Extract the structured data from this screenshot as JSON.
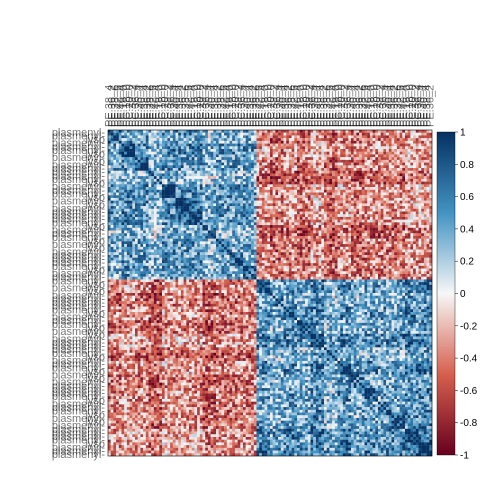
{
  "chart_data": {
    "type": "heatmap",
    "title": "",
    "xlabel": "",
    "ylabel": "",
    "value_range": [
      -1,
      1
    ],
    "colorbar": {
      "ticks": [
        1,
        0.8,
        0.6,
        0.4,
        0.2,
        0,
        -0.2,
        -0.4,
        -0.6,
        -0.8,
        -1
      ],
      "tick_labels": [
        "1",
        "0.8",
        "0.6",
        "0.4",
        "0.2",
        "0",
        "-0.2",
        "-0.4",
        "-0.6",
        "-0.8",
        "-1"
      ],
      "colors": {
        "high": "#053061",
        "mid_high": "#4393c3",
        "zero": "#f7f7f7",
        "mid_low": "#d6604d",
        "low": "#67001f"
      }
    },
    "legible_column_labels": [
      "PE.38_4",
      "PE.36_2",
      "PE.38_6",
      "PE.42_6",
      "PE.40_4",
      "PE.18_0",
      "PC.18_0",
      "PC.20_0",
      "PE.38_2",
      "PC.36_4",
      "PE.36_4",
      "PE.40_4"
    ],
    "legible_row_labels": [
      "plasmenyl-",
      "plasmenyl-",
      "lyso",
      "plasmenyl-",
      "plasmenyl-",
      "plasmenyl-",
      "lyso",
      "plasmenyl-",
      "lyso",
      "plasmenyl-",
      "plasmenyl-",
      "plasmenyl-"
    ],
    "block_structure": {
      "n_blocks": 24,
      "group_a_blocks": [
        0,
        1,
        2,
        3,
        4,
        5,
        6,
        7,
        8,
        9,
        10
      ],
      "group_b_blocks": [
        11,
        12,
        13,
        14,
        15,
        16,
        17,
        18,
        19,
        20,
        21,
        22,
        23
      ],
      "within_group_a_mean": 0.35,
      "within_group_b_mean": 0.45,
      "between_groups_mean": -0.45,
      "diagonal_value": 1
    }
  }
}
